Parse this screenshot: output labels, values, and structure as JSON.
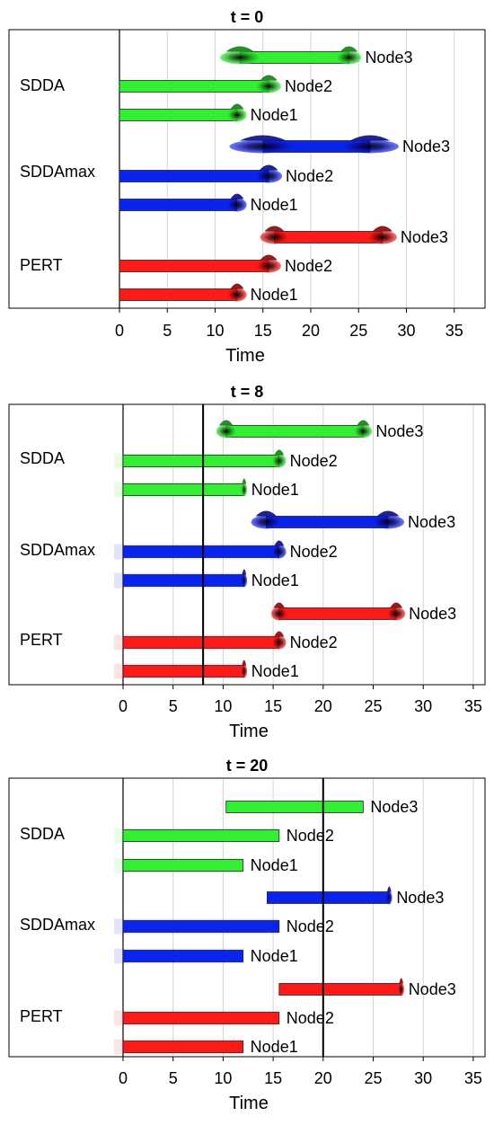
{
  "chart_data": [
    {
      "type": "gantt",
      "title": "t = 0",
      "xlabel": "Time",
      "xlim": [
        0,
        37
      ],
      "xticks": [
        0,
        5,
        10,
        15,
        20,
        25,
        30,
        35
      ],
      "groups": [
        {
          "name": "SDDA",
          "color": "#33ee33",
          "dist_color": "#1a7a1a",
          "tasks": [
            {
              "label": "Node3",
              "start": 12.6,
              "end": 24.0,
              "start_spread": 2.1,
              "end_spread": 1.3
            },
            {
              "label": "Node2",
              "start": 0,
              "end": 15.6,
              "start_spread": 0,
              "end_spread": 1.3
            },
            {
              "label": "Node1",
              "start": 0,
              "end": 12.3,
              "start_spread": 0,
              "end_spread": 1.0
            }
          ]
        },
        {
          "name": "SDDAmax",
          "color": "#0a24ee",
          "dist_color": "#0a0a80",
          "tasks": [
            {
              "label": "Node3",
              "start": 15.0,
              "end": 26.2,
              "start_spread": 3.5,
              "end_spread": 3.0
            },
            {
              "label": "Node2",
              "start": 0,
              "end": 15.6,
              "start_spread": 0,
              "end_spread": 1.4
            },
            {
              "label": "Node1",
              "start": 0,
              "end": 12.3,
              "start_spread": 0,
              "end_spread": 1.0
            }
          ]
        },
        {
          "name": "PERT",
          "color": "#ff1a1a",
          "dist_color": "#7a0a0a",
          "tasks": [
            {
              "label": "Node3",
              "start": 16.2,
              "end": 27.5,
              "start_spread": 1.5,
              "end_spread": 1.5
            },
            {
              "label": "Node2",
              "start": 0,
              "end": 15.6,
              "start_spread": 0,
              "end_spread": 1.3
            },
            {
              "label": "Node1",
              "start": 0,
              "end": 12.3,
              "start_spread": 0,
              "end_spread": 1.0
            }
          ]
        }
      ]
    },
    {
      "type": "gantt",
      "title": "t = 8",
      "xlabel": "Time",
      "xlim": [
        0,
        37
      ],
      "xticks": [
        0,
        5,
        10,
        15,
        20,
        25,
        30,
        35
      ],
      "current_time": 8,
      "groups": [
        {
          "name": "SDDA",
          "color": "#33ee33",
          "dist_color": "#1a7a1a",
          "tasks": [
            {
              "label": "Node3",
              "start": 10.3,
              "end": 24.0,
              "start_spread": 1.0,
              "end_spread": 0.9
            },
            {
              "label": "Node2",
              "start": 0,
              "end": 15.6,
              "start_spread": 0,
              "end_spread": 0.7
            },
            {
              "label": "Node1",
              "start": 0,
              "end": 12.1,
              "start_spread": 0,
              "end_spread": 0.3
            }
          ]
        },
        {
          "name": "SDDAmax",
          "color": "#0a24ee",
          "dist_color": "#0a0a80",
          "tasks": [
            {
              "label": "Node3",
              "start": 14.3,
              "end": 26.5,
              "start_spread": 1.5,
              "end_spread": 1.6
            },
            {
              "label": "Node2",
              "start": 0,
              "end": 15.6,
              "start_spread": 0,
              "end_spread": 0.7
            },
            {
              "label": "Node1",
              "start": 0,
              "end": 12.1,
              "start_spread": 0,
              "end_spread": 0.3
            }
          ]
        },
        {
          "name": "PERT",
          "color": "#ff1a1a",
          "dist_color": "#7a0a0a",
          "tasks": [
            {
              "label": "Node3",
              "start": 15.6,
              "end": 27.3,
              "start_spread": 0.8,
              "end_spread": 0.9
            },
            {
              "label": "Node2",
              "start": 0,
              "end": 15.6,
              "start_spread": 0,
              "end_spread": 0.7
            },
            {
              "label": "Node1",
              "start": 0,
              "end": 12.1,
              "start_spread": 0,
              "end_spread": 0.3
            }
          ]
        }
      ]
    },
    {
      "type": "gantt",
      "title": "t = 20",
      "xlabel": "Time",
      "xlim": [
        0,
        37
      ],
      "xticks": [
        0,
        5,
        10,
        15,
        20,
        25,
        30,
        35
      ],
      "current_time": 20,
      "groups": [
        {
          "name": "SDDA",
          "color": "#33ee33",
          "dist_color": "#1a7a1a",
          "tasks": [
            {
              "label": "Node3",
              "start": 10.3,
              "end": 24.0,
              "start_spread": 0,
              "end_spread": 0
            },
            {
              "label": "Node2",
              "start": 0,
              "end": 15.6,
              "start_spread": 0,
              "end_spread": 0
            },
            {
              "label": "Node1",
              "start": 0,
              "end": 12.0,
              "start_spread": 0,
              "end_spread": 0
            }
          ]
        },
        {
          "name": "SDDAmax",
          "color": "#0a24ee",
          "dist_color": "#0a0a80",
          "tasks": [
            {
              "label": "Node3",
              "start": 14.4,
              "end": 26.6,
              "start_spread": 0,
              "end_spread": 0.3
            },
            {
              "label": "Node2",
              "start": 0,
              "end": 15.6,
              "start_spread": 0,
              "end_spread": 0
            },
            {
              "label": "Node1",
              "start": 0,
              "end": 12.0,
              "start_spread": 0,
              "end_spread": 0
            }
          ]
        },
        {
          "name": "PERT",
          "color": "#ff1a1a",
          "dist_color": "#7a0a0a",
          "tasks": [
            {
              "label": "Node3",
              "start": 15.6,
              "end": 27.8,
              "start_spread": 0,
              "end_spread": 0.3
            },
            {
              "label": "Node2",
              "start": 0,
              "end": 15.6,
              "start_spread": 0,
              "end_spread": 0
            },
            {
              "label": "Node1",
              "start": 0,
              "end": 12.0,
              "start_spread": 0,
              "end_spread": 0
            }
          ]
        }
      ]
    }
  ]
}
